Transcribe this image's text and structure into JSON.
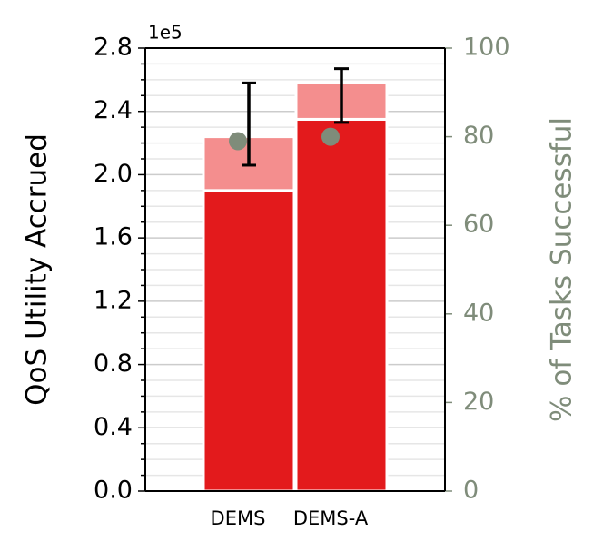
{
  "chart_data": {
    "type": "stacked_bar",
    "ylabel": "QoS Utility Accrued",
    "y2label": "% of Tasks Successful",
    "offset_label": "1e5",
    "categories": [
      "DEMS",
      "DEMS-A"
    ],
    "series": [
      {
        "color": "#e31a1c",
        "values": [
          1.9,
          2.35
        ]
      },
      {
        "color": "#f48e8e",
        "values": [
          0.34,
          0.23
        ]
      }
    ],
    "error_bars": {
      "color": "#000000",
      "values": [
        2.32,
        2.5
      ],
      "errors": [
        0.26,
        0.17
      ]
    },
    "success": {
      "axis": "y2",
      "color": "#7f8c7a",
      "values": [
        79,
        80
      ]
    },
    "ylim": [
      0,
      2.8
    ],
    "yticks": [
      {
        "value": 0,
        "label": "0.0"
      },
      0.4,
      0.8,
      1.2,
      1.6,
      {
        "value": 2,
        "label": "2.0"
      },
      2.4,
      2.8
    ],
    "yminorticks": [
      0.1,
      0.2,
      0.3,
      0.5,
      0.6,
      0.7,
      0.9,
      1.0,
      1.1,
      1.3,
      1.4,
      1.5,
      1.7,
      1.8,
      1.9,
      2.1,
      2.2,
      2.3,
      2.5,
      2.6,
      2.7
    ],
    "y2lim": [
      0,
      100
    ],
    "y2ticks": [
      0,
      20,
      40,
      60,
      80,
      100
    ],
    "y2color": "#7f8c7a",
    "grid": true
  }
}
